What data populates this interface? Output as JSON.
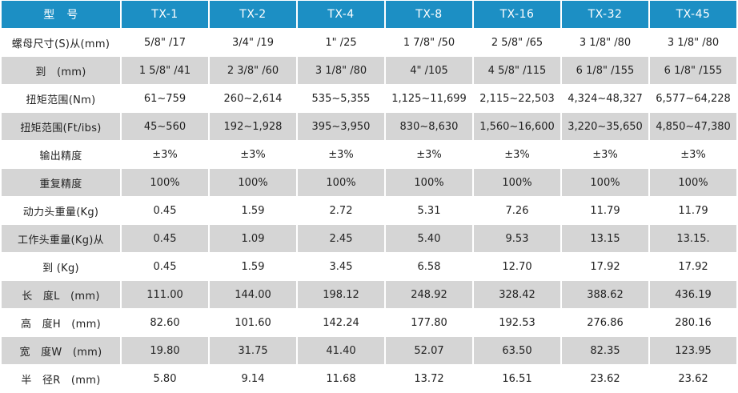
{
  "header": {
    "label": "型　号",
    "models": [
      "TX-1",
      "TX-2",
      "TX-4",
      "TX-8",
      "TX-16",
      "TX-32",
      "TX-45"
    ]
  },
  "rows": [
    {
      "label": "螺母尺寸(S)从(mm)",
      "values": [
        "5/8\" /17",
        "3/4\" /19",
        "1\" /25",
        "1 7/8\" /50",
        "2 5/8\" /65",
        "3 1/8\" /80",
        "3 1/8\" /80"
      ]
    },
    {
      "label": "到　(mm)",
      "values": [
        "1 5/8\" /41",
        "2 3/8\" /60",
        "3 1/8\" /80",
        "4\" /105",
        "4 5/8\" /115",
        "6 1/8\" /155",
        "6 1/8\" /155"
      ]
    },
    {
      "label": "扭矩范围(Nm)",
      "values": [
        "61~759",
        "260~2,614",
        "535~5,355",
        "1,125~11,699",
        "2,115~22,503",
        "4,324~48,327",
        "6,577~64,228"
      ]
    },
    {
      "label": "扭矩范围(Ft/ibs)",
      "values": [
        "45~560",
        "192~1,928",
        "395~3,950",
        "830~8,630",
        "1,560~16,600",
        "3,220~35,650",
        "4,850~47,380"
      ]
    },
    {
      "label": "输出精度",
      "values": [
        "±3%",
        "±3%",
        "±3%",
        "±3%",
        "±3%",
        "±3%",
        "±3%"
      ]
    },
    {
      "label": "重复精度",
      "values": [
        "100%",
        "100%",
        "100%",
        "100%",
        "100%",
        "100%",
        "100%"
      ]
    },
    {
      "label": "动力头重量(Kg)",
      "values": [
        "0.45",
        "1.59",
        "2.72",
        "5.31",
        "7.26",
        "11.79",
        "11.79"
      ]
    },
    {
      "label": "工作头重量(Kg)从",
      "values": [
        "0.45",
        "1.09",
        "2.45",
        "5.40",
        "9.53",
        "13.15",
        "13.15."
      ]
    },
    {
      "label": "到 (Kg)",
      "values": [
        "0.45",
        "1.59",
        "3.45",
        "6.58",
        "12.70",
        "17.92",
        "17.92"
      ]
    },
    {
      "label": "长　度L　(mm)",
      "values": [
        "111.00",
        "144.00",
        "198.12",
        "248.92",
        "328.42",
        "388.62",
        "436.19"
      ]
    },
    {
      "label": "高　度H　(mm)",
      "values": [
        "82.60",
        "101.60",
        "142.24",
        "177.80",
        "192.53",
        "276.86",
        "280.16"
      ]
    },
    {
      "label": "宽　度W　(mm)",
      "values": [
        "19.80",
        "31.75",
        "41.40",
        "52.07",
        "63.50",
        "82.35",
        "123.95"
      ]
    },
    {
      "label": "半　径R　(mm)",
      "values": [
        "5.80",
        "9.14",
        "11.68",
        "13.72",
        "16.51",
        "23.62",
        "23.62"
      ]
    }
  ],
  "colors": {
    "header_bg": "#1c8fc4",
    "header_text": "#ffffff",
    "row_alt_bg": "#d5d5d5",
    "row_bg": "#ffffff",
    "body_text": "#222222"
  }
}
